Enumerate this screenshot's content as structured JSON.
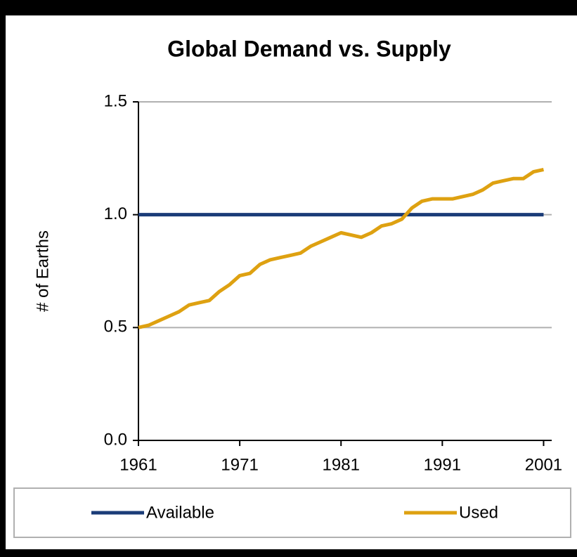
{
  "chart_data": {
    "type": "line",
    "title": "Global Demand vs. Supply",
    "y_label": "# of Earths",
    "x": [
      1961,
      1962,
      1963,
      1964,
      1965,
      1966,
      1967,
      1968,
      1969,
      1970,
      1971,
      1972,
      1973,
      1974,
      1975,
      1976,
      1977,
      1978,
      1979,
      1980,
      1981,
      1982,
      1983,
      1984,
      1985,
      1986,
      1987,
      1988,
      1989,
      1990,
      1991,
      1992,
      1993,
      1994,
      1995,
      1996,
      1997,
      1998,
      1999,
      2000,
      2001
    ],
    "series": [
      {
        "name": "Available",
        "color": "#1b3c78",
        "values": [
          1,
          1,
          1,
          1,
          1,
          1,
          1,
          1,
          1,
          1,
          1,
          1,
          1,
          1,
          1,
          1,
          1,
          1,
          1,
          1,
          1,
          1,
          1,
          1,
          1,
          1,
          1,
          1,
          1,
          1,
          1,
          1,
          1,
          1,
          1,
          1,
          1,
          1,
          1,
          1,
          1
        ]
      },
      {
        "name": "Used",
        "color": "#dea111",
        "values": [
          0.5,
          0.51,
          0.53,
          0.55,
          0.57,
          0.6,
          0.61,
          0.62,
          0.66,
          0.69,
          0.73,
          0.74,
          0.78,
          0.8,
          0.81,
          0.82,
          0.83,
          0.86,
          0.88,
          0.9,
          0.92,
          0.91,
          0.9,
          0.92,
          0.95,
          0.96,
          0.98,
          1.03,
          1.06,
          1.07,
          1.07,
          1.07,
          1.08,
          1.09,
          1.11,
          1.14,
          1.15,
          1.16,
          1.16,
          1.19,
          1.2
        ]
      }
    ],
    "xlim": [
      1961,
      2001.8
    ],
    "xticks": [
      1961,
      1971,
      1981,
      1991,
      2001
    ],
    "ylim": [
      0,
      1.5
    ],
    "yticks": [
      {
        "value": 0,
        "label": "0.0"
      },
      0.5,
      {
        "value": 1,
        "label": "1.0"
      },
      1.5
    ],
    "grid": true,
    "legend": "bottom"
  }
}
